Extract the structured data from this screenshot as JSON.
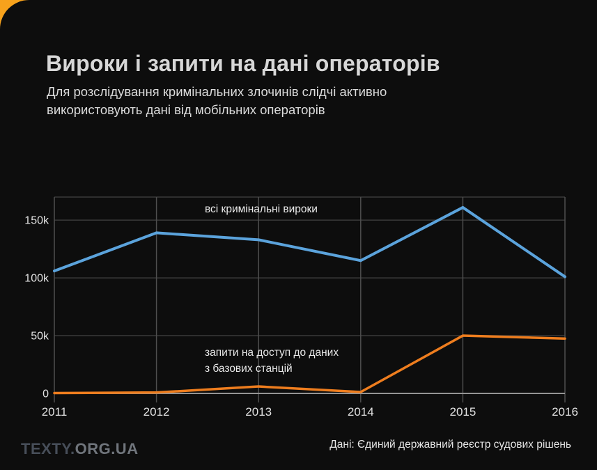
{
  "header": {
    "title": "Вироки і запити на дані операторів",
    "subtitle_lines": [
      "Для розслідування кримінальних злочинів слідчі активно",
      "використовують дані від мобільних операторів"
    ]
  },
  "chart_data": {
    "type": "line",
    "title": "Вироки і запити на дані операторів",
    "categories": [
      "2011",
      "2012",
      "2013",
      "2014",
      "2015",
      "2016"
    ],
    "series": [
      {
        "name": "всі кримінальні вироки",
        "color": "#5ba3dc",
        "stroke_width": 4,
        "values": [
          106000,
          139000,
          133000,
          115000,
          161000,
          101000
        ]
      },
      {
        "name": "запити на доступ до даних з базових станцій",
        "color": "#ee7d1e",
        "stroke_width": 3.5,
        "values": [
          300,
          800,
          6000,
          1200,
          50000,
          47500
        ]
      }
    ],
    "yticks": [
      {
        "label": "0",
        "value": 0
      },
      {
        "label": "50k",
        "value": 50000
      },
      {
        "label": "100k",
        "value": 100000
      },
      {
        "label": "150k",
        "value": 150000
      }
    ],
    "ylim": [
      0,
      170000
    ],
    "grid": true,
    "legend_position": "inline-annotations",
    "annotations": [
      {
        "text": "всі кримінальні вироки"
      },
      {
        "text": "запити на доступ до даних\nз базових станцій"
      }
    ]
  },
  "footer": {
    "logo_primary": "TEXTY.",
    "logo_secondary": "ORG.UA",
    "source": "Дані: Єдиний державний реєстр судових рішень"
  },
  "colors": {
    "card_background": "#0d0d0d",
    "corner_accent": "#f7a21c",
    "blue_line": "#5ba3dc",
    "orange_line": "#ee7d1e",
    "grid_horizontal": "#3a3a3a",
    "grid_vertical": "#4e4e4e",
    "zero_line": "#949494"
  }
}
